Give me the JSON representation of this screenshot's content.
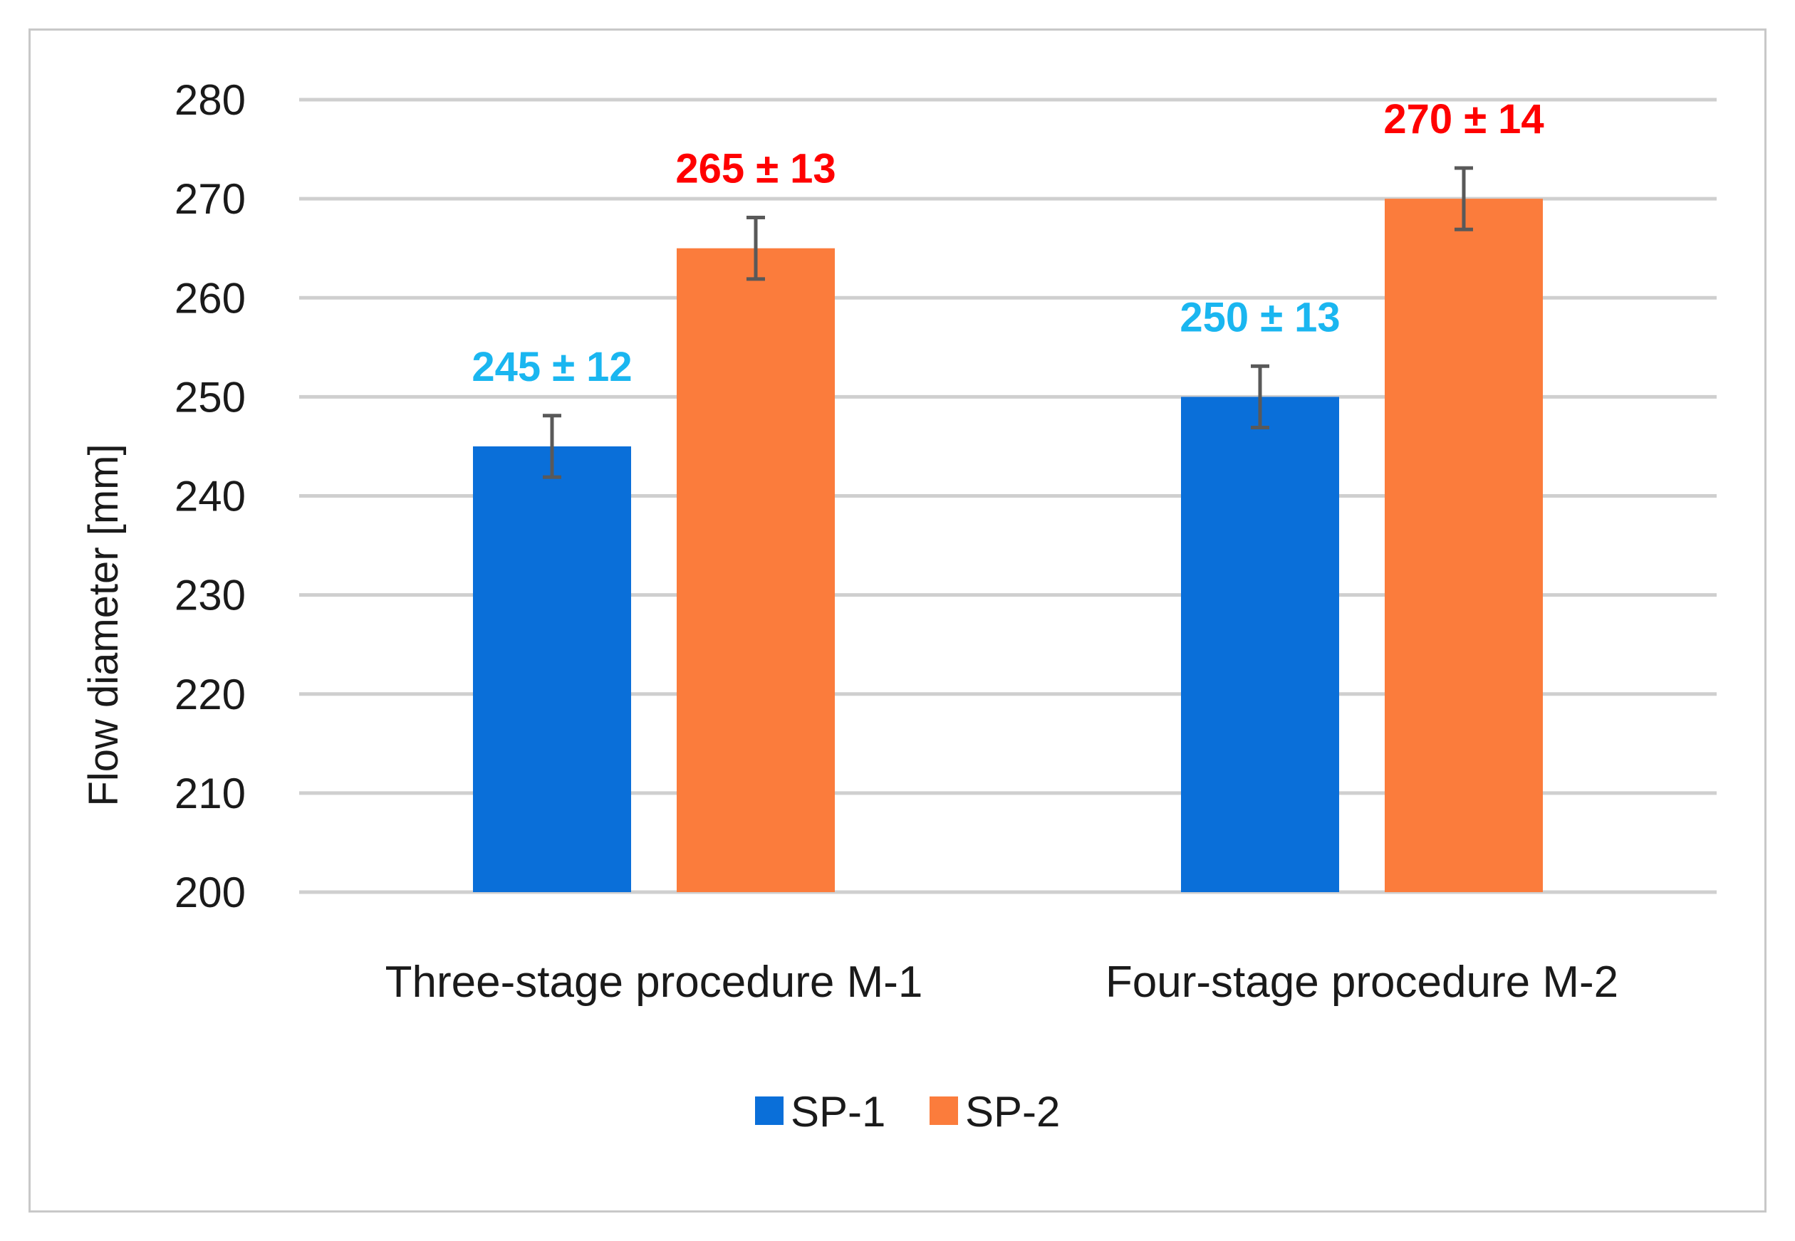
{
  "chart_data": {
    "type": "bar",
    "categories": [
      "Three-stage procedure M-1",
      "Four-stage procedure M-2"
    ],
    "series": [
      {
        "name": "SP-1",
        "values": [
          245,
          250
        ],
        "errors": [
          12,
          13
        ],
        "labels": [
          "245 ± 12",
          "250 ± 13"
        ],
        "color": "#0a6fd9",
        "label_color": "#1ab6f0"
      },
      {
        "name": "SP-2",
        "values": [
          265,
          270
        ],
        "errors": [
          13,
          14
        ],
        "labels": [
          "265 ± 13",
          "270 ± 14"
        ],
        "color": "#fb7c3c",
        "label_color": "#ff0000"
      }
    ],
    "ylabel": "Flow diameter  [mm]",
    "xlabel": "",
    "ylim": [
      200,
      280
    ],
    "yticks": [
      200,
      210,
      220,
      230,
      240,
      250,
      260,
      270,
      280
    ],
    "grid": true,
    "legend": "bottom-center"
  }
}
